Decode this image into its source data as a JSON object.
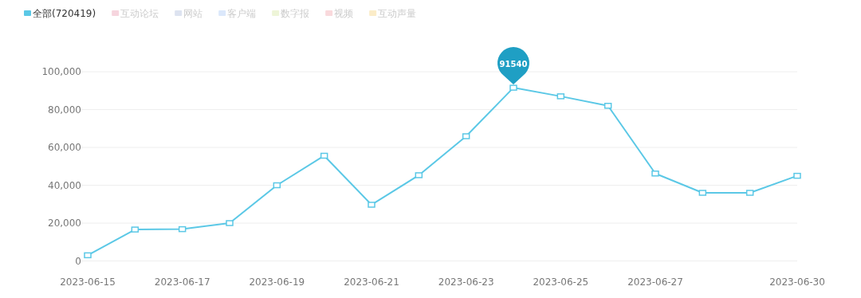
{
  "chart_data": {
    "type": "line",
    "categories": [
      "2023-06-15",
      null,
      "2023-06-17",
      null,
      "2023-06-19",
      null,
      "2023-06-21",
      null,
      "2023-06-23",
      null,
      "2023-06-25",
      null,
      "2023-06-27",
      null,
      null,
      "2023-06-30"
    ],
    "series": [
      {
        "name": "全部(720419)",
        "color": "#5bc8e6",
        "values": [
          3000,
          16600,
          16800,
          20000,
          40000,
          55600,
          29700,
          45300,
          65900,
          91540,
          87000,
          82000,
          46200,
          36000,
          36000,
          45000
        ],
        "value_labels": [
          null,
          null,
          null,
          null,
          null,
          null,
          null,
          null,
          null,
          "91540",
          null,
          null,
          null,
          null,
          null,
          null
        ]
      },
      {
        "name": "互动论坛",
        "color": "#f6d5de",
        "values": [
          null,
          null,
          null,
          null,
          null,
          null,
          null,
          null,
          null,
          null,
          null,
          null,
          null,
          null,
          null,
          null
        ]
      },
      {
        "name": "网站",
        "color": "#dde3f0",
        "values": [
          null,
          null,
          null,
          null,
          null,
          null,
          null,
          null,
          null,
          null,
          null,
          null,
          null,
          null,
          null,
          null
        ]
      },
      {
        "name": "客户端",
        "color": "#dbe8fb",
        "values": [
          null,
          null,
          null,
          null,
          null,
          null,
          null,
          null,
          null,
          null,
          null,
          null,
          null,
          null,
          null,
          null
        ]
      },
      {
        "name": "数字报",
        "color": "#eef5d8",
        "values": [
          null,
          null,
          null,
          null,
          null,
          null,
          null,
          null,
          null,
          null,
          null,
          null,
          null,
          null,
          null,
          null
        ]
      },
      {
        "name": "视频",
        "color": "#f9d9dc",
        "values": [
          null,
          null,
          null,
          null,
          null,
          null,
          null,
          null,
          null,
          null,
          null,
          null,
          null,
          null,
          null,
          null
        ]
      },
      {
        "name": "互动声量",
        "color": "#fbecc8",
        "values": [
          null,
          null,
          null,
          null,
          null,
          null,
          null,
          null,
          null,
          null,
          null,
          null,
          null,
          null,
          null,
          null
        ]
      }
    ],
    "ylim": [
      0,
      100000
    ],
    "yticks": [
      0,
      {
        "value": 20000,
        "label": "20,000"
      },
      {
        "value": 40000,
        "label": "40,000"
      },
      {
        "value": 60000,
        "label": "60,000"
      },
      {
        "value": 80000,
        "label": "80,000"
      },
      {
        "value": 100000,
        "label": "100,000"
      }
    ],
    "grid": "y",
    "legend": "top left",
    "marker": "square",
    "line_style": "solid"
  }
}
